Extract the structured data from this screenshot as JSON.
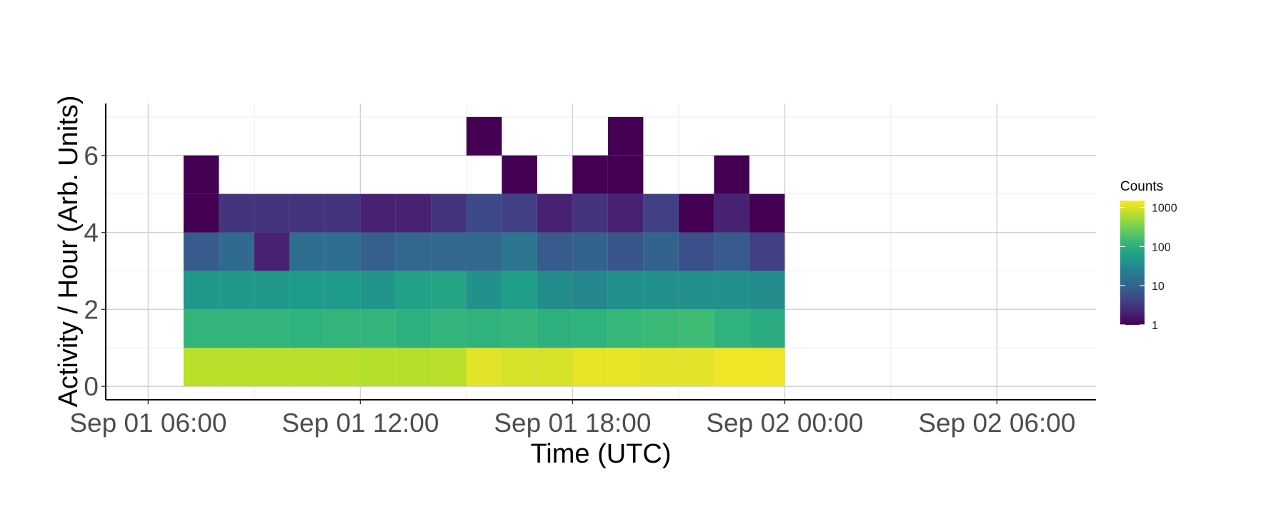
{
  "chart_data": {
    "type": "heatmap",
    "xlabel": "Time (UTC)",
    "ylabel": "Activity / Hour (Arb. Units)",
    "x_ticks": [
      "Sep 01 06:00",
      "Sep 01 12:00",
      "Sep 01 18:00",
      "Sep 02 00:00",
      "Sep 02 06:00"
    ],
    "y_ticks": [
      "0",
      "2",
      "4",
      "6"
    ],
    "xlim_hours": [
      4.8,
      32.8
    ],
    "x_tick_hours": [
      6,
      12,
      18,
      24,
      30
    ],
    "ylim": [
      -0.35,
      7.35
    ],
    "y_tick_values": [
      0,
      2,
      4,
      6
    ],
    "bin_width_hours": 1,
    "bin_height": 1,
    "x_bin_starts_hours": [
      7,
      8,
      9,
      10,
      11,
      12,
      13,
      14,
      15,
      16,
      17,
      18,
      19,
      20,
      21,
      22,
      23
    ],
    "y_bin_starts": [
      0,
      1,
      2,
      3,
      4,
      5,
      6
    ],
    "counts": [
      [
        700,
        700,
        700,
        700,
        700,
        650,
        650,
        700,
        1100,
        950,
        950,
        1150,
        1150,
        1100,
        1100,
        1300,
        1300
      ],
      [
        120,
        120,
        120,
        110,
        120,
        120,
        100,
        120,
        110,
        120,
        100,
        110,
        130,
        140,
        150,
        110,
        90
      ],
      [
        50,
        50,
        50,
        55,
        55,
        45,
        65,
        70,
        40,
        60,
        35,
        30,
        40,
        40,
        40,
        40,
        35
      ],
      [
        8,
        12,
        2,
        14,
        14,
        9,
        11,
        11,
        11,
        18,
        8,
        10,
        7,
        10,
        6,
        8,
        4
      ],
      [
        1,
        3,
        3,
        3,
        3,
        2,
        2,
        3,
        5,
        4,
        2,
        3,
        2,
        4,
        1,
        2,
        1
      ],
      [
        1,
        null,
        null,
        null,
        null,
        null,
        null,
        null,
        null,
        1,
        null,
        1,
        1,
        null,
        null,
        1,
        null
      ],
      [
        null,
        null,
        null,
        null,
        null,
        null,
        null,
        null,
        1,
        null,
        null,
        null,
        1,
        null,
        null,
        null,
        null
      ]
    ],
    "color_scale": "viridis",
    "color_scale_log": true,
    "color_range": [
      1,
      1500
    ],
    "legend": {
      "title": "Counts",
      "labels": [
        "1000",
        "100",
        "10",
        "1"
      ],
      "values": [
        1000,
        100,
        10,
        1
      ],
      "placement": "right"
    },
    "grid": true
  }
}
